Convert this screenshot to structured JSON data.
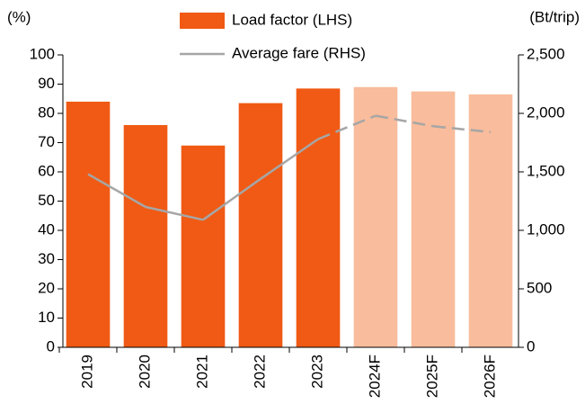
{
  "chart_data": {
    "type": "bar",
    "categories": [
      "2019",
      "2020",
      "2021",
      "2022",
      "2023",
      "2024F",
      "2025F",
      "2026F"
    ],
    "ylabel": "(%)",
    "y2label": "(Bt/trip)",
    "ylim": [
      0,
      100
    ],
    "yticks": [
      0,
      10,
      20,
      30,
      40,
      50,
      60,
      70,
      80,
      90,
      100
    ],
    "y2lim": [
      0,
      2500
    ],
    "y2ticks": [
      0,
      500,
      {
        "value": 1000,
        "label": "1,000"
      },
      {
        "value": 1500,
        "label": "1,500"
      },
      {
        "value": 2000,
        "label": "2,000"
      },
      {
        "value": 2500,
        "label": "2,500"
      }
    ],
    "series": [
      {
        "name": "Load factor (LHS)",
        "type": "bar",
        "color": "#f05a14",
        "colors": [
          "#f05a14",
          "#f05a14",
          "#f05a14",
          "#f05a14",
          "#f05a14",
          "#f9bc9c",
          "#f9bc9c",
          "#f9bc9c"
        ],
        "values": [
          84,
          76,
          69,
          83.5,
          88.5,
          89,
          87.5,
          86.5
        ]
      },
      {
        "name": "Average fare (RHS)",
        "type": "line",
        "axis": "y2",
        "color": "#a6a6a6",
        "styles": [
          "solid",
          "solid",
          "solid",
          "solid",
          "solid",
          "dashed",
          "dashed",
          "dashed"
        ],
        "values": [
          1480,
          1200,
          1090,
          1440,
          1780,
          1980,
          1890,
          1840
        ]
      }
    ]
  }
}
